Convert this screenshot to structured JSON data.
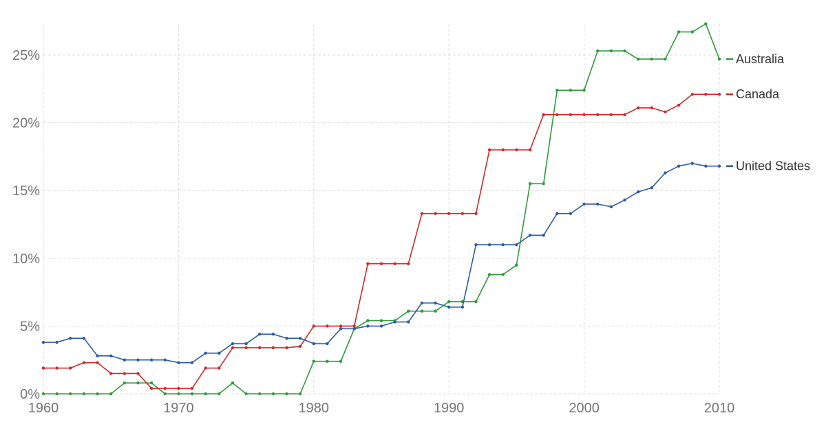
{
  "chart_data": {
    "type": "line",
    "title": "",
    "xlabel": "",
    "ylabel": "",
    "xlim": [
      1960,
      2010
    ],
    "ylim": [
      0,
      27.5
    ],
    "x_ticks": [
      1960,
      1970,
      1980,
      1990,
      2000,
      2010
    ],
    "y_ticks": [
      0,
      5,
      10,
      15,
      20,
      25
    ],
    "y_tick_labels": [
      "0%",
      "5%",
      "10%",
      "15%",
      "20%",
      "25%"
    ],
    "grid": true,
    "legend": "right-end-labels",
    "x": [
      1960,
      1961,
      1962,
      1963,
      1964,
      1965,
      1966,
      1967,
      1968,
      1969,
      1970,
      1971,
      1972,
      1973,
      1974,
      1975,
      1976,
      1977,
      1978,
      1979,
      1980,
      1981,
      1982,
      1983,
      1984,
      1985,
      1986,
      1987,
      1988,
      1989,
      1990,
      1991,
      1992,
      1993,
      1994,
      1995,
      1996,
      1997,
      1998,
      1999,
      2000,
      2001,
      2002,
      2003,
      2004,
      2005,
      2006,
      2007,
      2008,
      2009,
      2010
    ],
    "series": [
      {
        "name": "Australia",
        "color": "#2e9b3a",
        "values": [
          0,
          0,
          0,
          0,
          0,
          0,
          0.8,
          0.8,
          0.8,
          0,
          0,
          0,
          0,
          0,
          0.8,
          0,
          0,
          0,
          0,
          0,
          2.4,
          2.4,
          2.4,
          4.8,
          5.4,
          5.4,
          5.4,
          6.1,
          6.1,
          6.1,
          6.8,
          6.8,
          6.8,
          8.8,
          8.8,
          9.5,
          15.5,
          15.5,
          22.4,
          22.4,
          22.4,
          25.3,
          25.3,
          25.3,
          24.7,
          24.7,
          24.7,
          26.7,
          26.7,
          27.3,
          24.7
        ]
      },
      {
        "name": "Canada",
        "color": "#cf2a27",
        "values": [
          1.9,
          1.9,
          1.9,
          2.3,
          2.3,
          1.5,
          1.5,
          1.5,
          0.4,
          0.4,
          0.4,
          0.4,
          1.9,
          1.9,
          3.4,
          3.4,
          3.4,
          3.4,
          3.4,
          3.5,
          5,
          5,
          5,
          5,
          9.6,
          9.6,
          9.6,
          9.6,
          13.3,
          13.3,
          13.3,
          13.3,
          13.3,
          18,
          18,
          18,
          18,
          20.6,
          20.6,
          20.6,
          20.6,
          20.6,
          20.6,
          20.6,
          21.1,
          21.1,
          20.8,
          21.3,
          22.1,
          22.1,
          22.1
        ]
      },
      {
        "name": "United States",
        "color": "#2b5ca8",
        "values": [
          3.8,
          3.8,
          4.1,
          4.1,
          2.8,
          2.8,
          2.5,
          2.5,
          2.5,
          2.5,
          2.3,
          2.3,
          3,
          3,
          3.7,
          3.7,
          4.4,
          4.4,
          4.1,
          4.1,
          3.7,
          3.7,
          4.8,
          4.8,
          5,
          5,
          5.3,
          5.3,
          6.7,
          6.7,
          6.4,
          6.4,
          11,
          11,
          11,
          11,
          11.7,
          11.7,
          13.3,
          13.3,
          14,
          14,
          13.8,
          14.3,
          14.9,
          15.2,
          16.3,
          16.8,
          17,
          16.8,
          16.8
        ]
      }
    ]
  }
}
